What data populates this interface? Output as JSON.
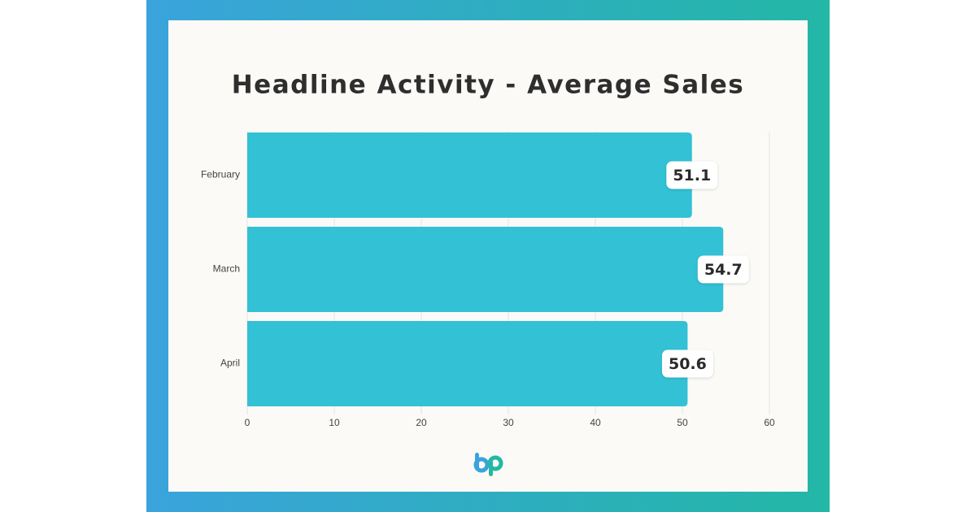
{
  "chart_data": {
    "type": "bar",
    "orientation": "horizontal",
    "title": "Headline Activity - Average Sales",
    "categories": [
      "February",
      "March",
      "April"
    ],
    "values": [
      51.1,
      54.7,
      50.6
    ],
    "color": "#33c1d6",
    "xlim": [
      0,
      60
    ],
    "xticks": [
      0,
      10,
      20,
      30,
      40,
      50,
      60
    ],
    "grid": true,
    "data_labels": true
  }
}
